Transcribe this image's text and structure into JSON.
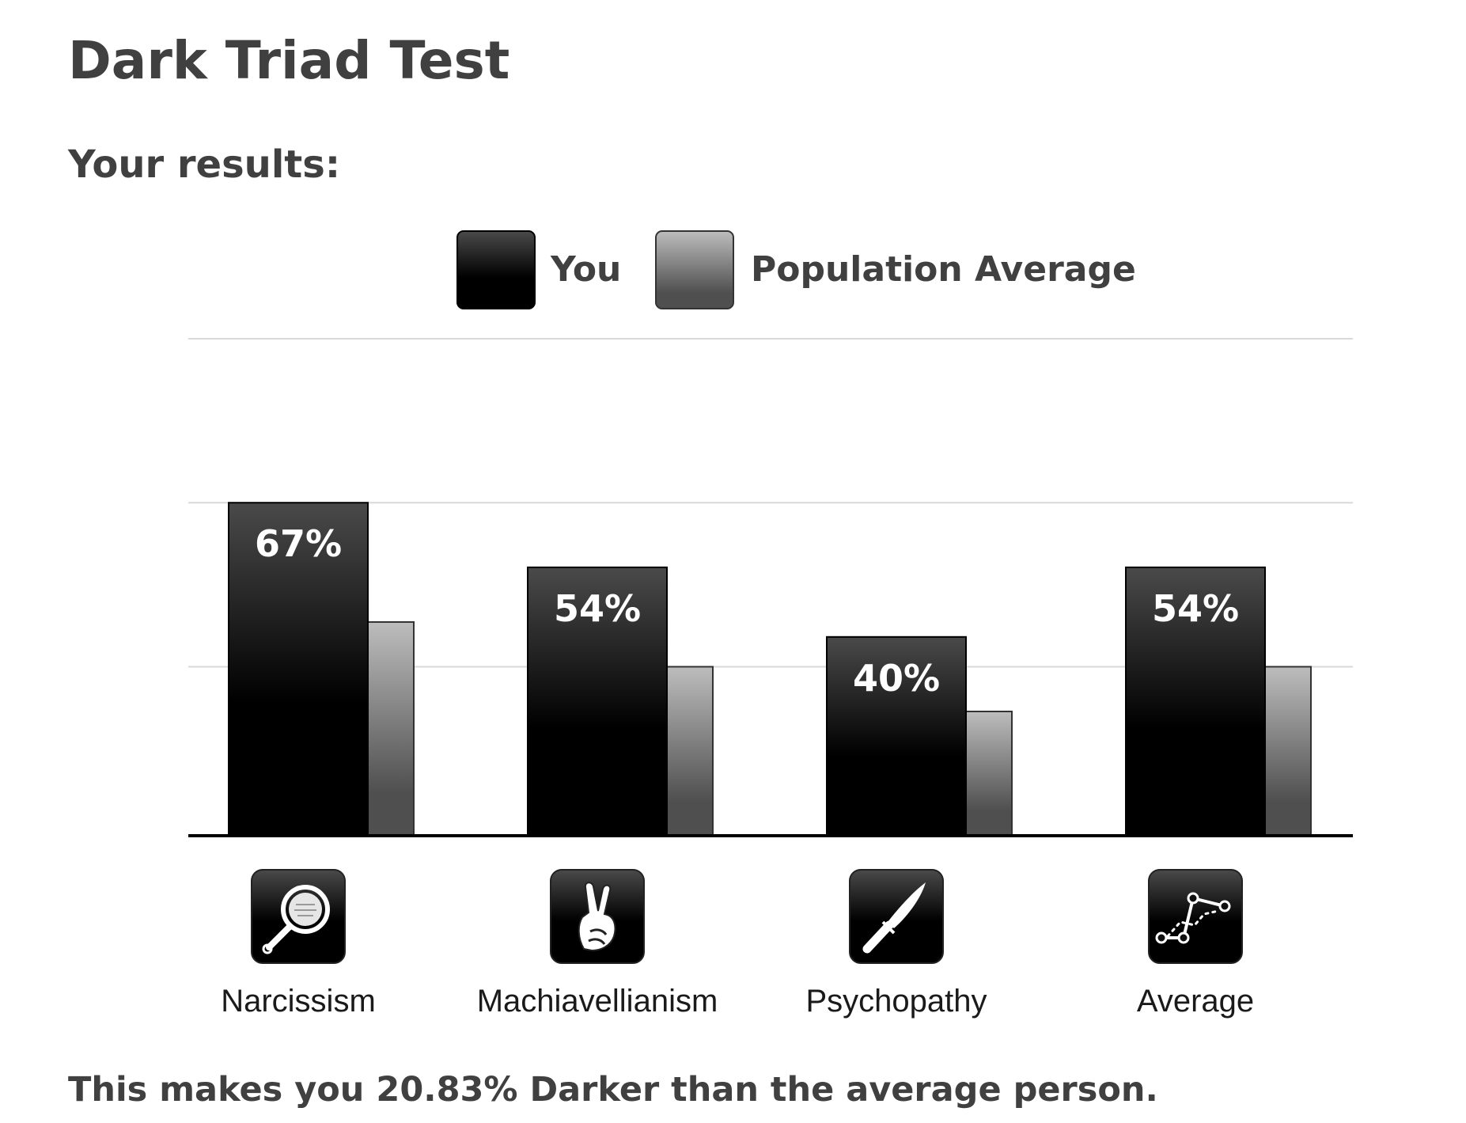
{
  "page": {
    "title": "Dark Triad Test",
    "subtitle": "Your results:",
    "summary": "This makes you 20.83% Darker than the average person."
  },
  "colors": {
    "you_top": "#4a4a4a",
    "you_bottom": "#000000",
    "avg_top": "#bdbdbd",
    "avg_bottom": "#4f4f4f",
    "grid": "#d9d9d9",
    "axis": "#000000",
    "icon_bg": "#111111"
  },
  "chart_data": {
    "type": "bar",
    "categories": [
      "Narcissism",
      "Machiavellianism",
      "Psychopathy",
      "Average"
    ],
    "icons": [
      "hand-mirror-icon",
      "crossed-fingers-icon",
      "knife-icon",
      "trend-line-icon"
    ],
    "series": [
      {
        "name": "You",
        "values": [
          67,
          54,
          40,
          54
        ],
        "labels": [
          "67%",
          "54%",
          "40%",
          "54%"
        ]
      },
      {
        "name": "Population Average",
        "values": [
          43,
          34,
          25,
          34
        ]
      }
    ],
    "ylim": [
      0,
      100
    ],
    "grid": true,
    "legend_position": "top-center"
  }
}
